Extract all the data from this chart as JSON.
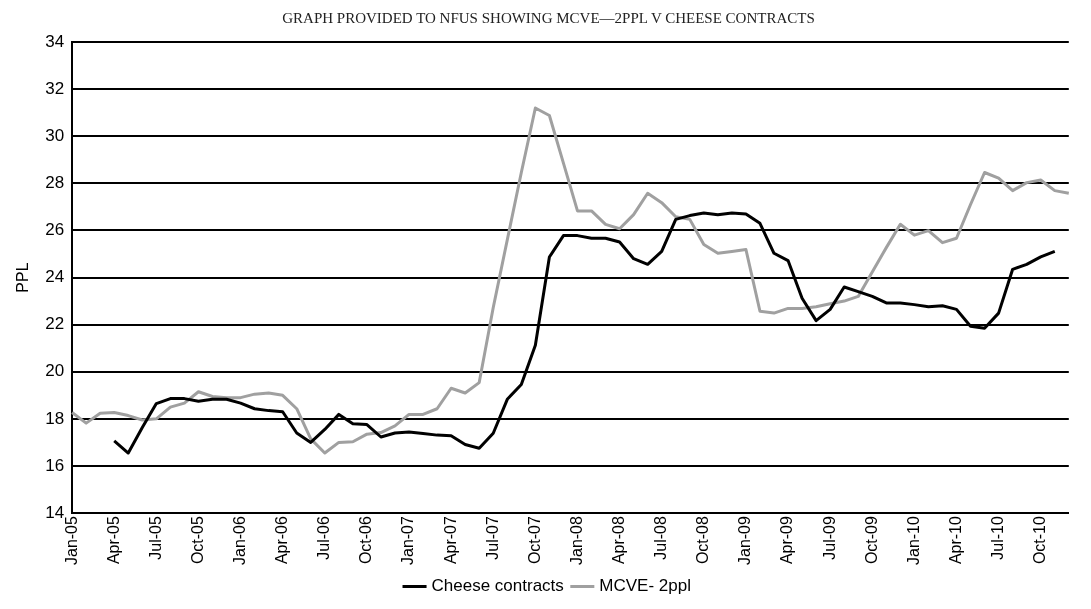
{
  "chart_data": {
    "type": "line",
    "title": "GRAPH PROVIDED TO NFUS SHOWING MCVE—2PPL V CHEESE CONTRACTS",
    "ylabel": "PPL",
    "categories": [
      "Jan-05",
      null,
      null,
      "Apr-05",
      null,
      null,
      "Jul-05",
      null,
      null,
      "Oct-05",
      null,
      null,
      "Jan-06",
      null,
      null,
      "Apr-06",
      null,
      null,
      "Jul-06",
      null,
      null,
      "Oct-06",
      null,
      null,
      "Jan-07",
      null,
      null,
      "Apr-07",
      null,
      null,
      "Jul-07",
      null,
      null,
      "Oct-07",
      null,
      null,
      "Jan-08",
      null,
      null,
      "Apr-08",
      null,
      null,
      "Jul-08",
      null,
      null,
      "Oct-08",
      null,
      null,
      "Jan-09",
      null,
      null,
      "Apr-09",
      null,
      null,
      "Jul-09",
      null,
      null,
      "Oct-09",
      null,
      null,
      "Jan-10",
      null,
      null,
      "Apr-10",
      null,
      null,
      "Jul-10",
      null,
      null,
      "Oct-10",
      null,
      null
    ],
    "series": [
      {
        "name": "Cheese contracts",
        "color": "#000000",
        "values": [
          null,
          null,
          null,
          17.07,
          16.55,
          17.63,
          18.65,
          18.86,
          18.86,
          18.75,
          18.83,
          18.83,
          18.67,
          18.43,
          18.35,
          18.3,
          17.4,
          17.0,
          17.55,
          18.19,
          17.79,
          17.76,
          17.23,
          17.4,
          17.44,
          17.38,
          17.31,
          17.28,
          16.91,
          16.75,
          17.39,
          18.83,
          19.46,
          21.13,
          24.87,
          25.78,
          25.78,
          25.67,
          25.67,
          25.51,
          24.8,
          24.56,
          25.11,
          26.47,
          26.63,
          26.74,
          26.67,
          26.74,
          26.7,
          26.3,
          25.03,
          24.72,
          23.12,
          22.17,
          22.65,
          23.6,
          23.4,
          23.2,
          22.92,
          22.92,
          22.85,
          22.76,
          22.8,
          22.65,
          21.93,
          21.85,
          22.49,
          24.35,
          24.56,
          24.88,
          25.11,
          null
        ]
      },
      {
        "name": "MCVE- 2ppl",
        "color": "#a0a0a0",
        "values": [
          18.27,
          17.82,
          18.24,
          18.27,
          18.14,
          17.95,
          18.0,
          18.5,
          18.67,
          19.15,
          18.95,
          18.9,
          18.9,
          19.05,
          19.1,
          19.0,
          18.43,
          17.15,
          16.55,
          17.0,
          17.03,
          17.35,
          17.42,
          17.7,
          18.19,
          18.19,
          18.43,
          19.3,
          19.1,
          19.54,
          22.73,
          25.6,
          28.46,
          31.2,
          30.88,
          28.86,
          26.83,
          26.83,
          26.26,
          26.07,
          26.67,
          27.58,
          27.18,
          26.58,
          26.47,
          25.4,
          25.03,
          25.11,
          25.19,
          22.57,
          22.49,
          22.69,
          22.69,
          22.76,
          22.89,
          23.0,
          23.2,
          24.24,
          25.27,
          26.26,
          25.8,
          25.99,
          25.48,
          25.67,
          27.1,
          28.46,
          28.22,
          27.69,
          28.03,
          28.14,
          27.69,
          27.58
        ]
      }
    ],
    "ylim": [
      14,
      34
    ],
    "yticks": [
      14,
      16,
      18,
      20,
      22,
      24,
      26,
      28,
      30,
      32,
      34
    ],
    "grid": "y",
    "legend": "bottom",
    "marker": "none",
    "line_style": "solid"
  }
}
